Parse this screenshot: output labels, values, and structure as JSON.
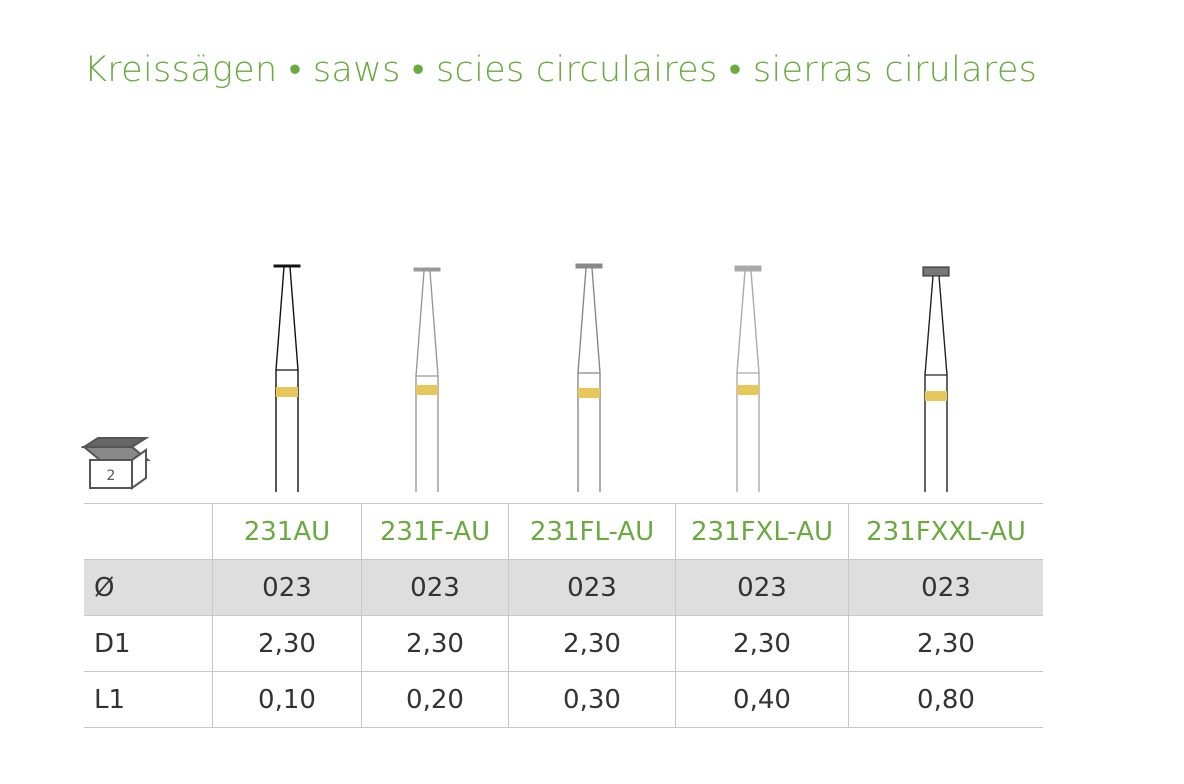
{
  "title": "Kreissägen • saws • scies circulaires • sierras cirulares",
  "package": {
    "quantity": "2"
  },
  "table": {
    "columns": [
      "231AU",
      "231F-AU",
      "231FL-AU",
      "231FXL-AU",
      "231FXXL-AU"
    ],
    "rows": [
      {
        "label": "Ø",
        "cells": [
          "023",
          "023",
          "023",
          "023",
          "023"
        ]
      },
      {
        "label": "D1",
        "cells": [
          "2,30",
          "2,30",
          "2,30",
          "2,30",
          "2,30"
        ]
      },
      {
        "label": "L1",
        "cells": [
          "0,10",
          "0,20",
          "0,30",
          "0,40",
          "0,80"
        ]
      }
    ]
  }
}
